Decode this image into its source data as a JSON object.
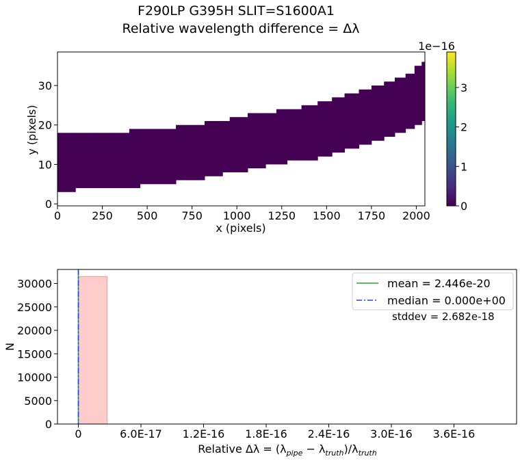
{
  "title": {
    "line1": "F290LP   G395H   SLIT=S1600A1",
    "line2": "Relative wavelength difference = Δλ"
  },
  "chart_data": [
    {
      "type": "heatmap",
      "xlabel": "x (pixels)",
      "ylabel": "y (pixels)",
      "xlim": [
        0,
        2048
      ],
      "ylim": [
        -0.5,
        38.5
      ],
      "xticks": [
        0,
        250,
        500,
        750,
        1000,
        1250,
        1500,
        1750,
        2000
      ],
      "yticks": [
        0,
        10,
        20,
        30
      ],
      "fill_value": 0,
      "trace_columns": [
        {
          "x": 0,
          "y_low": 3,
          "y_high": 18
        },
        {
          "x": 100,
          "y_low": 4,
          "y_high": 18
        },
        {
          "x": 200,
          "y_low": 4,
          "y_high": 18
        },
        {
          "x": 300,
          "y_low": 4,
          "y_high": 18
        },
        {
          "x": 400,
          "y_low": 4,
          "y_high": 19
        },
        {
          "x": 460,
          "y_low": 5,
          "y_high": 19
        },
        {
          "x": 600,
          "y_low": 5,
          "y_high": 19
        },
        {
          "x": 660,
          "y_low": 6,
          "y_high": 20
        },
        {
          "x": 780,
          "y_low": 6,
          "y_high": 20
        },
        {
          "x": 820,
          "y_low": 7,
          "y_high": 21
        },
        {
          "x": 920,
          "y_low": 8,
          "y_high": 21
        },
        {
          "x": 960,
          "y_low": 8,
          "y_high": 22
        },
        {
          "x": 1060,
          "y_low": 9,
          "y_high": 23
        },
        {
          "x": 1160,
          "y_low": 10,
          "y_high": 23
        },
        {
          "x": 1220,
          "y_low": 10,
          "y_high": 24
        },
        {
          "x": 1280,
          "y_low": 11,
          "y_high": 24
        },
        {
          "x": 1360,
          "y_low": 11,
          "y_high": 25
        },
        {
          "x": 1450,
          "y_low": 12,
          "y_high": 26
        },
        {
          "x": 1530,
          "y_low": 13,
          "y_high": 27
        },
        {
          "x": 1600,
          "y_low": 14,
          "y_high": 28
        },
        {
          "x": 1680,
          "y_low": 15,
          "y_high": 29
        },
        {
          "x": 1750,
          "y_low": 16,
          "y_high": 30
        },
        {
          "x": 1820,
          "y_low": 17,
          "y_high": 31
        },
        {
          "x": 1880,
          "y_low": 18,
          "y_high": 32
        },
        {
          "x": 1940,
          "y_low": 19,
          "y_high": 33
        },
        {
          "x": 1990,
          "y_low": 20,
          "y_high": 35
        },
        {
          "x": 2030,
          "y_low": 21,
          "y_high": 36
        }
      ],
      "colorbar": {
        "min": 0,
        "max": 3.9,
        "ticks": [
          0,
          1,
          2,
          3
        ],
        "scale_label": "1e−16",
        "colormap": "viridis",
        "stops": [
          "#440154",
          "#482878",
          "#3e4989",
          "#31688e",
          "#26828e",
          "#1f9e89",
          "#35b779",
          "#6ece58",
          "#b5de2b",
          "#fde725"
        ]
      }
    },
    {
      "type": "bar",
      "xlabel_main": "Relative Δλ = (λ",
      "xlabel_sub1": "pipe",
      "xlabel_mid": " − λ",
      "xlabel_sub2": "truth",
      "xlabel_mid2": ")/λ",
      "xlabel_sub3": "truth",
      "ylabel": "N",
      "xlim": [
        -2e-17,
        4.2e-16
      ],
      "ylim": [
        0,
        33000
      ],
      "xtick_values": [
        0,
        6e-17,
        1.2e-16,
        1.8e-16,
        2.4e-16,
        3e-16,
        3.6e-16
      ],
      "xtick_labels": [
        "0",
        "6.0E-17",
        "1.2E-16",
        "1.8E-16",
        "2.4E-16",
        "3.0E-16",
        "3.6E-16"
      ],
      "ytick_values": [
        0,
        5000,
        10000,
        15000,
        20000,
        25000,
        30000
      ],
      "ytick_labels": [
        "0",
        "5000",
        "10000",
        "15000",
        "20000",
        "25000",
        "30000"
      ],
      "bins": [
        {
          "x0": 0,
          "x1": 2.75e-17,
          "count": 31500
        }
      ],
      "bar_color": "#ffcccc",
      "bar_edge": "#e0a0a0",
      "lines": [
        {
          "name": "mean = 2.446e-20",
          "x": 2.446e-20,
          "color": "#2ca02c",
          "style": "solid"
        },
        {
          "name": "median = 0.000e+00",
          "x": 0,
          "color": "#1f3fff",
          "style": "dashdot"
        }
      ],
      "stddev_text": "stddev = 2.682e-18",
      "legend_loc": "top-right"
    }
  ]
}
